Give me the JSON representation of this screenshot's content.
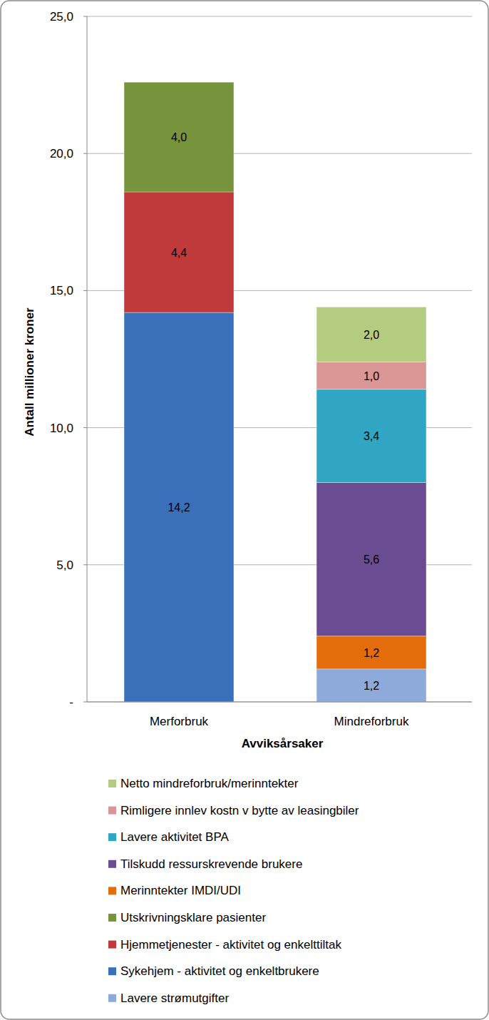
{
  "chart_data": {
    "type": "bar",
    "stacked": true,
    "data_labels": true,
    "grid": true,
    "legend": "bottom",
    "x_label": "Avviksårsaker",
    "y_label": "Antall millioner kroner",
    "categories": [
      "Merforbruk",
      "Mindreforbruk"
    ],
    "ylim": [
      0,
      25
    ],
    "yticks": [
      {
        "value": 0,
        "label": "-"
      },
      {
        "value": 5,
        "label": "5,0"
      },
      {
        "value": 10,
        "label": "10,0"
      },
      {
        "value": 15,
        "label": "15,0"
      },
      {
        "value": 20,
        "label": "20,0"
      },
      {
        "value": 25,
        "label": "25,0"
      }
    ],
    "series": [
      {
        "name": "Lavere strømutgifter",
        "color": "#8eaadb",
        "values": [
          null,
          1.2
        ],
        "value_labels": [
          null,
          "1,2"
        ]
      },
      {
        "name": "Sykehjem - aktivitet og enkeltbrukere",
        "color": "#3a6fba",
        "values": [
          14.2,
          null
        ],
        "value_labels": [
          "14,2",
          null
        ]
      },
      {
        "name": "Hjemmetjenester - aktivitet og enkelttiltak",
        "color": "#c0393b",
        "values": [
          4.4,
          null
        ],
        "value_labels": [
          "4,4",
          null
        ]
      },
      {
        "name": "Utskrivningsklare pasienter",
        "color": "#77933c",
        "values": [
          4.0,
          null
        ],
        "value_labels": [
          "4,0",
          null
        ]
      },
      {
        "name": "Merinntekter IMDI/UDI",
        "color": "#e46c0a",
        "values": [
          null,
          1.2
        ],
        "value_labels": [
          null,
          "1,2"
        ]
      },
      {
        "name": "Tilskudd ressurskrevende brukere",
        "color": "#6a4c93",
        "values": [
          null,
          5.6
        ],
        "value_labels": [
          null,
          "5,6"
        ]
      },
      {
        "name": "Lavere aktivitet BPA",
        "color": "#31a5c4",
        "values": [
          null,
          3.4
        ],
        "value_labels": [
          null,
          "3,4"
        ]
      },
      {
        "name": "Rimligere innlev kostn v bytte av leasingbiler",
        "color": "#d99694",
        "values": [
          null,
          1.0
        ],
        "value_labels": [
          null,
          "1,0"
        ]
      },
      {
        "name": "Netto mindreforbruk/merinntekter",
        "color": "#b4cc7f",
        "values": [
          null,
          2.0
        ],
        "value_labels": [
          null,
          "2,0"
        ]
      }
    ]
  }
}
